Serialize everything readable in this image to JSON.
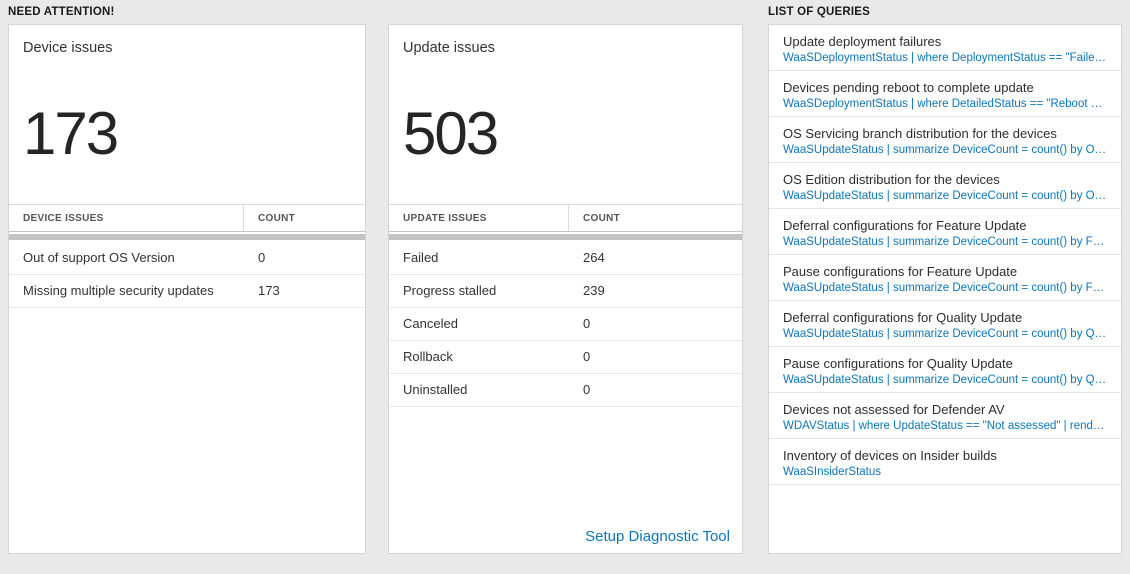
{
  "colors": {
    "accent": "#0d76b8",
    "page_background": "#e9e9e9",
    "card_background": "#ffffff"
  },
  "sections": {
    "need_attention": "NEED ATTENTION!",
    "list_of_queries": "LIST OF QUERIES"
  },
  "device_card": {
    "title": "Device issues",
    "count": "173",
    "table": {
      "headers": [
        "DEVICE ISSUES",
        "COUNT"
      ],
      "rows": [
        {
          "label": "Out of support OS Version",
          "count": "0"
        },
        {
          "label": "Missing multiple security updates",
          "count": "173"
        }
      ]
    }
  },
  "update_card": {
    "title": "Update issues",
    "count": "503",
    "table": {
      "headers": [
        "UPDATE ISSUES",
        "COUNT"
      ],
      "rows": [
        {
          "label": "Failed",
          "count": "264"
        },
        {
          "label": "Progress stalled",
          "count": "239"
        },
        {
          "label": "Canceled",
          "count": "0"
        },
        {
          "label": "Rollback",
          "count": "0"
        },
        {
          "label": "Uninstalled",
          "count": "0"
        }
      ]
    },
    "link": "Setup Diagnostic Tool"
  },
  "queries": {
    "items": [
      {
        "title": "Update deployment failures",
        "query": "WaaSDeploymentStatus | where DeploymentStatus == \"Failed\" |…"
      },
      {
        "title": "Devices pending reboot to complete update",
        "query": "WaaSDeploymentStatus | where DetailedStatus == \"Reboot pend…"
      },
      {
        "title": "OS Servicing branch distribution for the devices",
        "query": "WaaSUpdateStatus | summarize DeviceCount = count() by OSSer…"
      },
      {
        "title": "OS Edition distribution for the devices",
        "query": "WaaSUpdateStatus | summarize DeviceCount = count() by OSEdit…"
      },
      {
        "title": "Deferral configurations for Feature Update",
        "query": "WaaSUpdateStatus | summarize DeviceCount = count() by Featur…"
      },
      {
        "title": "Pause configurations for Feature Update",
        "query": "WaaSUpdateStatus | summarize DeviceCount = count() by Featur…"
      },
      {
        "title": "Deferral configurations for Quality Update",
        "query": "WaaSUpdateStatus | summarize DeviceCount = count() by Qualit…"
      },
      {
        "title": "Pause configurations for Quality Update",
        "query": "WaaSUpdateStatus | summarize DeviceCount = count() by Qualit…"
      },
      {
        "title": "Devices not assessed for Defender AV",
        "query": "WDAVStatus | where UpdateStatus == \"Not assessed\" | render ta…"
      },
      {
        "title": "Inventory of devices on Insider builds",
        "query": "WaaSInsiderStatus"
      }
    ]
  }
}
